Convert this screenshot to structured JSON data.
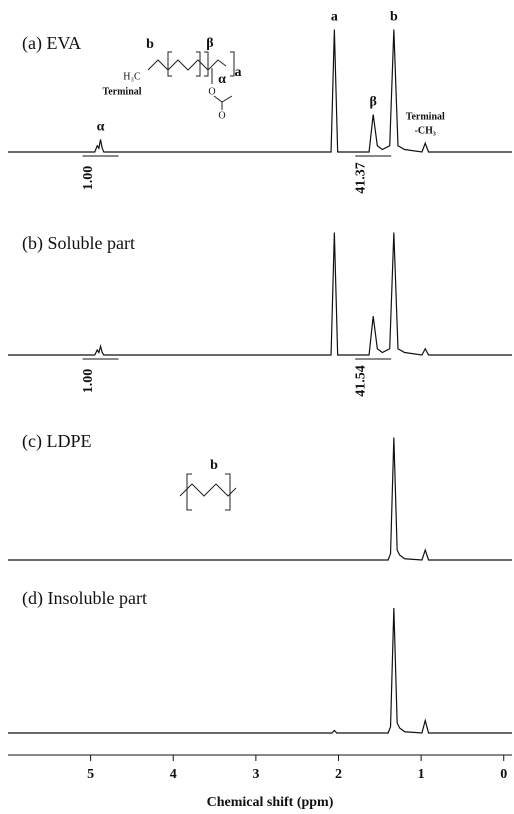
{
  "chart_data": {
    "type": "line",
    "x_label": "Chemical shift (ppm)",
    "xlim": [
      6,
      -0.1
    ],
    "xticks": [
      5,
      4,
      3,
      2,
      1,
      0
    ],
    "ylim": [
      0,
      100
    ],
    "series": [
      {
        "name": "(a) EVA",
        "color": "#111111",
        "x": [
          6,
          4.95,
          4.92,
          4.9,
          4.88,
          4.86,
          4.84,
          2.09,
          2.05,
          2.01,
          1.63,
          1.58,
          1.53,
          1.47,
          1.38,
          1.33,
          1.28,
          1.2,
          0.99,
          0.95,
          0.91,
          -0.1
        ],
        "values": [
          0,
          0,
          5,
          3,
          10,
          3,
          0,
          0,
          98,
          0,
          0,
          30,
          5,
          2,
          5,
          98,
          5,
          2,
          0,
          7,
          0,
          0
        ],
        "annotations": [
          {
            "x": 4.88,
            "text": "α"
          },
          {
            "x": 2.05,
            "text": "a"
          },
          {
            "x": 1.58,
            "text": "β"
          },
          {
            "x": 1.33,
            "text": "b"
          },
          {
            "x": 0.95,
            "text": "Terminal"
          },
          {
            "x": 0.95,
            "text": "-CH₃"
          }
        ],
        "integrals": {
          "x": [
            4.88,
            1.58
          ],
          "values": [
            1,
            41.37
          ],
          "value_labels": [
            "1.00",
            "41.37"
          ]
        },
        "structure": [
          "b",
          "β",
          "α",
          "a",
          "H₃C",
          "Terminal",
          "O",
          "O"
        ]
      },
      {
        "name": "(b) Soluble part",
        "color": "#111111",
        "x": [
          6,
          4.95,
          4.92,
          4.9,
          4.88,
          4.86,
          4.84,
          2.09,
          2.05,
          2.01,
          1.63,
          1.58,
          1.53,
          1.47,
          1.38,
          1.33,
          1.28,
          1.2,
          0.99,
          0.95,
          0.91,
          -0.1
        ],
        "values": [
          0,
          0,
          4,
          2,
          7,
          2,
          0,
          0,
          98,
          0,
          0,
          31,
          5,
          2,
          5,
          98,
          5,
          2,
          0,
          5,
          0,
          0
        ],
        "integrals": {
          "x": [
            4.88,
            1.58
          ],
          "values": [
            1,
            41.54
          ],
          "value_labels": [
            "1.00",
            "41.54"
          ]
        }
      },
      {
        "name": "(c) LDPE",
        "color": "#111111",
        "x": [
          6,
          1.4,
          1.37,
          1.33,
          1.29,
          1.26,
          1.2,
          0.99,
          0.95,
          0.91,
          -0.1
        ],
        "values": [
          0,
          0,
          5,
          98,
          8,
          4,
          1,
          0,
          8,
          0,
          0
        ],
        "structure": [
          "b"
        ]
      },
      {
        "name": "(d) Insoluble part",
        "color": "#111111",
        "x": [
          6,
          2.08,
          2.05,
          2.02,
          1.4,
          1.37,
          1.33,
          1.29,
          1.26,
          1.2,
          0.99,
          0.95,
          0.91,
          -0.1
        ],
        "values": [
          0,
          0,
          2,
          0,
          0,
          5,
          100,
          8,
          4,
          1,
          0,
          10,
          0,
          0
        ]
      }
    ]
  }
}
